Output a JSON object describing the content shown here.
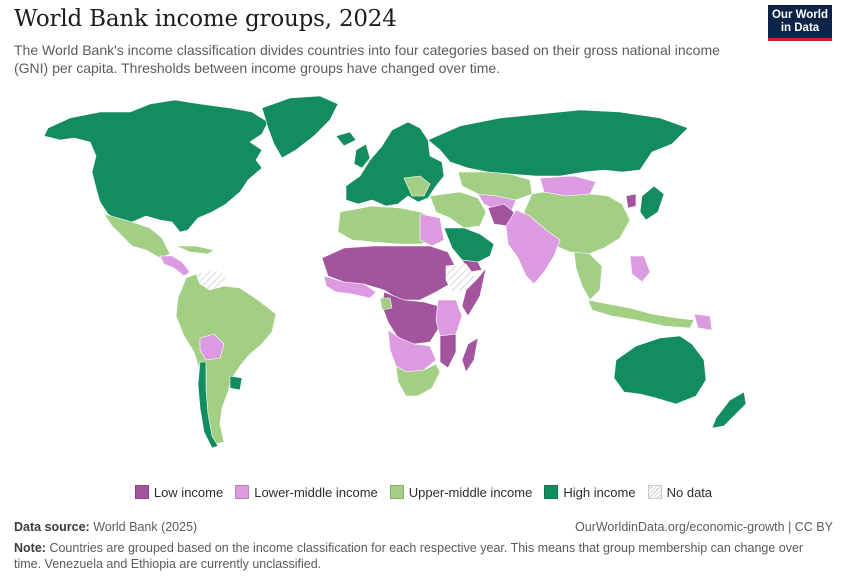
{
  "header": {
    "title": "World Bank income groups, 2024",
    "subtitle": "The World Bank's income classification divides countries into four categories based on their gross national income (GNI) per capita. Thresholds between income groups have changed over time."
  },
  "logo": {
    "line1": "Our World",
    "line2": "in Data"
  },
  "colors": {
    "low_income": "#a2559c",
    "lower_middle_income": "#dc9be0",
    "upper_middle_income": "#a3cf85",
    "high_income": "#138d5f",
    "no_data": "#ffffff",
    "logo_background": "#0b2447",
    "logo_accent": "#c7242b"
  },
  "legend": {
    "items": [
      {
        "label": "Low income",
        "color": "#a2559c"
      },
      {
        "label": "Lower-middle income",
        "color": "#dc9be0"
      },
      {
        "label": "Upper-middle income",
        "color": "#a3cf85"
      },
      {
        "label": "High income",
        "color": "#138d5f"
      },
      {
        "label": "No data",
        "color": "#ffffff",
        "pattern": "hatched"
      }
    ]
  },
  "footer": {
    "source_label": "Data source:",
    "source_text": "World Bank (2025)",
    "credit": "OurWorldinData.org/economic-growth | CC BY",
    "note_label": "Note:",
    "note_text": "Countries are grouped based on the income classification for each respective year. This means that group membership can change over time. Venezuela and Ethiopia are currently unclassified."
  }
}
